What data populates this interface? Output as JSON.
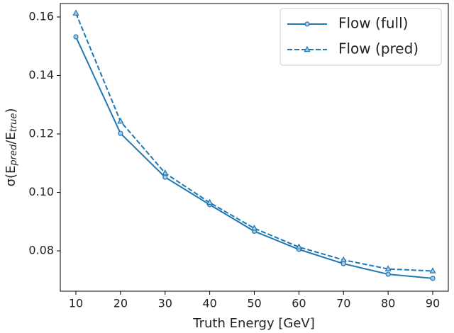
{
  "chart_data": {
    "type": "line",
    "xlabel": "Truth Energy [GeV]",
    "ylabel": [
      "σ(E",
      "pred",
      "/E",
      "true",
      ")"
    ],
    "x": [
      10,
      20,
      30,
      40,
      50,
      60,
      70,
      80,
      90
    ],
    "series": [
      {
        "name": "Flow (full)",
        "color": "#1f77b4",
        "dash": "solid",
        "marker": "circle",
        "values": [
          0.1532,
          0.1202,
          0.1052,
          0.0958,
          0.0867,
          0.0805,
          0.0756,
          0.072,
          0.0706
        ]
      },
      {
        "name": "Flow (pred)",
        "color": "#1f77b4",
        "dash": "dashed",
        "marker": "triangle",
        "values": [
          0.1613,
          0.1243,
          0.1066,
          0.0965,
          0.0877,
          0.0813,
          0.0769,
          0.0738,
          0.0731
        ]
      }
    ],
    "xlim": [
      6.5,
      93.5
    ],
    "ylim": [
      0.0662,
      0.1646
    ],
    "xticks": [
      10,
      20,
      30,
      40,
      50,
      60,
      70,
      80,
      90
    ],
    "yticks": [
      {
        "value": 0.08,
        "label": "0.08"
      },
      {
        "value": 0.1,
        "label": "0.10"
      },
      {
        "value": 0.12,
        "label": "0.12"
      },
      {
        "value": 0.14,
        "label": "0.14"
      },
      {
        "value": 0.16,
        "label": "0.16"
      }
    ],
    "legend": "upper right",
    "grid": false
  }
}
